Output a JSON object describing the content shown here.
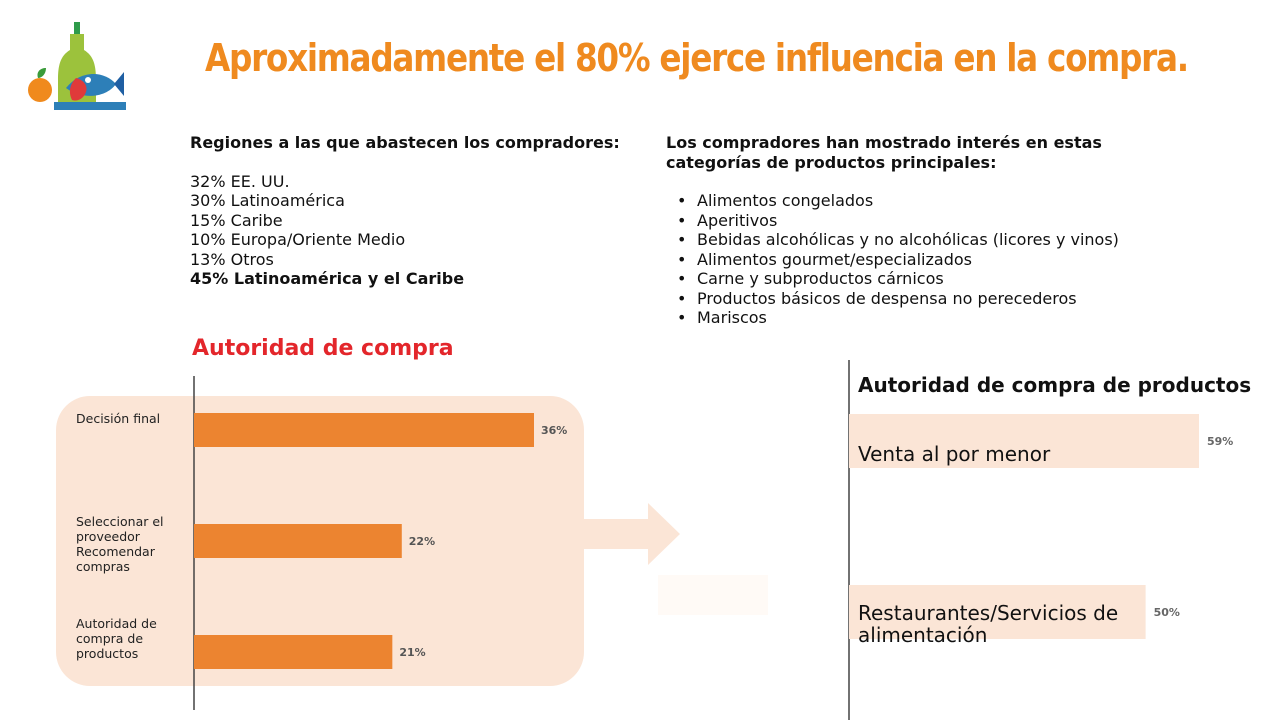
{
  "title": "Aproximadamente el 80% ejerce influencia en la compra.",
  "regions": {
    "heading": "Regiones a las que abastecen los compradores:",
    "items": [
      "32% EE. UU.",
      "30% Latinoamérica",
      "15% Caribe",
      "10% Europa/Oriente Medio",
      "13% Otros"
    ],
    "highlight": "45% Latinoamérica y el Caribe"
  },
  "categories": {
    "heading_line1": "Los compradores han mostrado interés en estas",
    "heading_line2": "categorías de productos principales:",
    "items": [
      "Alimentos congelados",
      "Aperitivos",
      "Bebidas alcohólicas y no alcohólicas (licores y vinos)",
      "Alimentos gourmet/especializados",
      "Carne y subproductos cárnicos",
      "Productos básicos de despensa no perecederos",
      " Mariscos"
    ]
  },
  "colors": {
    "title": "#ef8a1f",
    "bar_left": "#ec8430",
    "panel_bg": "#fbe5d6",
    "bar_right": "#fbe5d6",
    "left_chart_title": "#e3262b"
  },
  "chart_data": [
    {
      "type": "bar",
      "orientation": "horizontal",
      "title": "Autoridad de compra",
      "categories": [
        [
          "Decisión final"
        ],
        [
          "Seleccionar el",
          "proveedor",
          "Recomendar",
          "compras"
        ],
        [
          "Autoridad de",
          "compra de",
          "productos"
        ]
      ],
      "values": [
        36,
        22,
        21
      ],
      "value_labels": [
        "36%",
        "22%",
        "21%"
      ],
      "xlim": [
        0,
        100
      ]
    },
    {
      "type": "bar",
      "orientation": "horizontal",
      "title": "Autoridad de compra de productos",
      "categories": [
        [
          "Venta al por menor"
        ],
        [
          "Restaurantes/Servicios de",
          "alimentación"
        ]
      ],
      "values": [
        59,
        50
      ],
      "value_labels": [
        "59%",
        "50%"
      ],
      "xlim": [
        0,
        100
      ]
    }
  ]
}
